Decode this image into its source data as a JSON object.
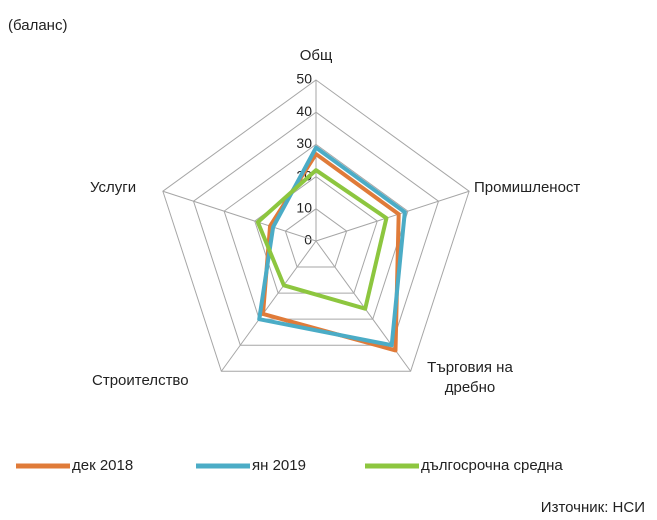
{
  "chart_data": {
    "type": "radar",
    "subtitle": "(баланс)",
    "categories": [
      "Общ",
      "Промишленост",
      "Търговия на дребно",
      "Строителство",
      "Услуги"
    ],
    "series": [
      {
        "name": "дек 2018",
        "color": "#e07b39",
        "values": [
          27,
          27,
          42,
          28,
          15
        ]
      },
      {
        "name": "ян 2019",
        "color": "#4bacc6",
        "values": [
          29,
          29,
          40,
          30,
          14
        ]
      },
      {
        "name": "дългосрочна средна",
        "color": "#8dc63f",
        "values": [
          22,
          23,
          26,
          17,
          19
        ]
      }
    ],
    "ylim": [
      0,
      50
    ],
    "yticks": [
      0,
      10,
      20,
      30,
      40,
      50
    ],
    "grid": true,
    "source": "Източник: НСИ"
  }
}
